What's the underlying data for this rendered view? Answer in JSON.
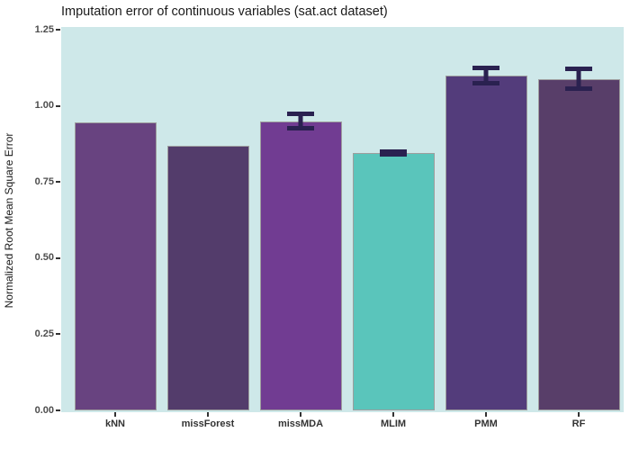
{
  "title": "Imputation error of continuous variables (sat.act dataset)",
  "chart_data": {
    "type": "bar",
    "title": "Imputation error of continuous variables (sat.act dataset)",
    "xlabel": "",
    "ylabel": "Normalized Root Mean Square Error",
    "categories": [
      "kNN",
      "missForest",
      "missMDA",
      "MLIM",
      "PMM",
      "RF"
    ],
    "values": [
      0.945,
      0.87,
      0.95,
      0.845,
      1.1,
      1.088
    ],
    "error_bars": [
      {
        "category": "kNN",
        "ymin": null,
        "ymax": null
      },
      {
        "category": "missForest",
        "ymin": null,
        "ymax": null
      },
      {
        "category": "missMDA",
        "ymin": 0.918,
        "ymax": 0.982
      },
      {
        "category": "MLIM",
        "ymin": 0.832,
        "ymax": 0.858
      },
      {
        "category": "PMM",
        "ymin": 1.068,
        "ymax": 1.132
      },
      {
        "category": "RF",
        "ymin": 1.048,
        "ymax": 1.13
      }
    ],
    "bar_colors": [
      "#684380",
      "#533c6b",
      "#713c92",
      "#5ac5bb",
      "#533c7b",
      "#583e69"
    ],
    "bar_border_color": "#9e9e9e",
    "errorbar_color": "#2a2150",
    "panel_background": "#cee8e9",
    "ylim": [
      0,
      1.25
    ],
    "yticks": [
      "0.00",
      "0.25",
      "0.50",
      "0.75",
      "1.00",
      "1.25"
    ],
    "grid": false,
    "legend": "none"
  }
}
